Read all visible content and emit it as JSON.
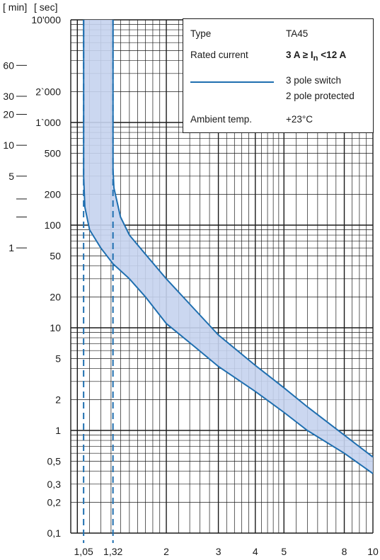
{
  "chart_data": {
    "type": "line",
    "title": "",
    "xlabel": "",
    "ylabel": "",
    "x_scale": "log",
    "y_scale": "log",
    "xlim": [
      0.95,
      10
    ],
    "ylim": [
      0.1,
      10000
    ],
    "y_units": {
      "min_label": "[ min]",
      "sec_label": "[ sec]"
    },
    "x_ticks": [
      {
        "v": 1.05,
        "t": "1,05"
      },
      {
        "v": 1.32,
        "t": "1,32"
      },
      {
        "v": 2,
        "t": "2"
      },
      {
        "v": 3,
        "t": "3"
      },
      {
        "v": 4,
        "t": "4"
      },
      {
        "v": 5,
        "t": "5"
      },
      {
        "v": 8,
        "t": "8"
      },
      {
        "v": 10,
        "t": "10"
      }
    ],
    "y_ticks_sec": [
      {
        "v": 10000,
        "t": "10'000"
      },
      {
        "v": 2000,
        "t": "2`000"
      },
      {
        "v": 1000,
        "t": "1`000"
      },
      {
        "v": 500,
        "t": "500"
      },
      {
        "v": 200,
        "t": "200"
      },
      {
        "v": 100,
        "t": "100"
      },
      {
        "v": 50,
        "t": "50"
      },
      {
        "v": 20,
        "t": "20"
      },
      {
        "v": 10,
        "t": "10"
      },
      {
        "v": 5,
        "t": "5"
      },
      {
        "v": 2,
        "t": "2"
      },
      {
        "v": 1,
        "t": "1"
      },
      {
        "v": 0.5,
        "t": "0,5"
      },
      {
        "v": 0.3,
        "t": "0,3"
      },
      {
        "v": 0.2,
        "t": "0,2"
      },
      {
        "v": 0.1,
        "t": "0,1"
      }
    ],
    "y_ticks_min": [
      {
        "v": 3600,
        "t": "60"
      },
      {
        "v": 1800,
        "t": "30"
      },
      {
        "v": 1200,
        "t": "20"
      },
      {
        "v": 600,
        "t": "10"
      },
      {
        "v": 300,
        "t": "5"
      },
      {
        "v": 180,
        "t": ""
      },
      {
        "v": 120,
        "t": ""
      },
      {
        "v": 60,
        "t": "1"
      }
    ],
    "reference_lines_x": [
      1.05,
      1.32
    ],
    "series": [
      {
        "role": "lower",
        "points": [
          [
            1.05,
            10000
          ],
          [
            1.05,
            300
          ],
          [
            1.06,
            150
          ],
          [
            1.1,
            90
          ],
          [
            1.2,
            60
          ],
          [
            1.32,
            42
          ],
          [
            1.5,
            30
          ],
          [
            1.7,
            20
          ],
          [
            2,
            11
          ],
          [
            2.5,
            6.5
          ],
          [
            3,
            4.2
          ],
          [
            4,
            2.4
          ],
          [
            5,
            1.5
          ],
          [
            6,
            1.0
          ],
          [
            8,
            0.6
          ],
          [
            10,
            0.38
          ]
        ]
      },
      {
        "role": "upper",
        "points": [
          [
            1.32,
            10000
          ],
          [
            1.32,
            350
          ],
          [
            1.33,
            230
          ],
          [
            1.4,
            120
          ],
          [
            1.5,
            80
          ],
          [
            1.7,
            52
          ],
          [
            2,
            30
          ],
          [
            2.5,
            15
          ],
          [
            3,
            8.5
          ],
          [
            4,
            4.3
          ],
          [
            5,
            2.6
          ],
          [
            6,
            1.7
          ],
          [
            8,
            0.9
          ],
          [
            10,
            0.55
          ]
        ]
      }
    ],
    "band_fill": "#c5d3ee",
    "line_color": "#1f6fb0"
  },
  "legend": {
    "type_label": "Type",
    "type_value": "TA45",
    "rated_label": "Rated current",
    "rated_value_pre": "3 A ≥ I",
    "rated_value_sub": "n",
    "rated_value_post": " <12 A",
    "line_desc_1": "3 pole switch",
    "line_desc_2": "2 pole protected",
    "ambient_label": "Ambient temp.",
    "ambient_value": "+23°C"
  }
}
